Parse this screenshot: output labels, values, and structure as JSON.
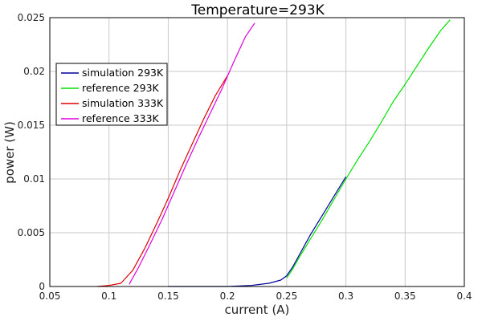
{
  "chart_data": {
    "type": "line",
    "title": "Temperature=293K",
    "xlabel": "current (A)",
    "ylabel": "power (W)",
    "xlim": [
      0.05,
      0.4
    ],
    "ylim": [
      0,
      0.025
    ],
    "xticks": [
      "0.05",
      "0.1",
      "0.15",
      "0.2",
      "0.25",
      "0.3",
      "0.35",
      "0.4"
    ],
    "yticks": [
      "0",
      "0.005",
      "0.01",
      "0.015",
      "0.02",
      "0.025"
    ],
    "grid": true,
    "legend_position": "upper-left",
    "series": [
      {
        "name": "simulation 293K",
        "color": "#00009b",
        "x": [
          0.15,
          0.2,
          0.22,
          0.235,
          0.245,
          0.25,
          0.255,
          0.26,
          0.27,
          0.28,
          0.29,
          0.3
        ],
        "y": [
          0.0,
          0.0,
          0.0001,
          0.0003,
          0.0006,
          0.001,
          0.0018,
          0.0028,
          0.0048,
          0.0066,
          0.0084,
          0.0102
        ]
      },
      {
        "name": "reference 293K",
        "color": "#00e000",
        "x": [
          0.25,
          0.255,
          0.26,
          0.27,
          0.28,
          0.29,
          0.3,
          0.31,
          0.32,
          0.33,
          0.34,
          0.35,
          0.36,
          0.37,
          0.38,
          0.388
        ],
        "y": [
          0.0008,
          0.0016,
          0.0026,
          0.0044,
          0.0062,
          0.0081,
          0.01,
          0.0118,
          0.0135,
          0.0153,
          0.0172,
          0.0188,
          0.0205,
          0.0222,
          0.0238,
          0.0248
        ]
      },
      {
        "name": "simulation 333K",
        "color": "#e00000",
        "x": [
          0.09,
          0.1,
          0.11,
          0.12,
          0.13,
          0.14,
          0.15,
          0.16,
          0.17,
          0.18,
          0.19,
          0.2
        ],
        "y": [
          0.0,
          0.0001,
          0.0003,
          0.0015,
          0.0035,
          0.0058,
          0.0082,
          0.0108,
          0.0132,
          0.0156,
          0.0178,
          0.0196
        ]
      },
      {
        "name": "reference 333K",
        "color": "#e000e0",
        "x": [
          0.117,
          0.125,
          0.135,
          0.145,
          0.155,
          0.165,
          0.175,
          0.185,
          0.195,
          0.205,
          0.215,
          0.223
        ],
        "y": [
          0.0002,
          0.0018,
          0.004,
          0.0063,
          0.0088,
          0.0113,
          0.0137,
          0.016,
          0.0183,
          0.0208,
          0.0232,
          0.0245
        ]
      }
    ]
  }
}
